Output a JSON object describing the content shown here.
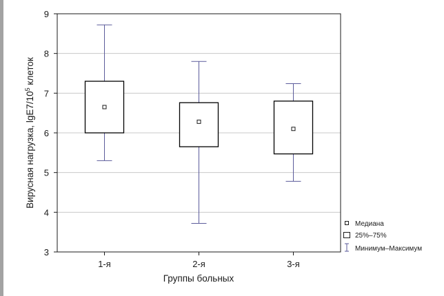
{
  "chart_data": {
    "type": "box",
    "categories": [
      "1-я",
      "2-я",
      "3-я"
    ],
    "boxes": [
      {
        "category": "1-я",
        "min": 5.3,
        "q1": 6.0,
        "median": 6.65,
        "q3": 7.3,
        "max": 8.72
      },
      {
        "category": "2-я",
        "min": 3.72,
        "q1": 5.65,
        "median": 6.28,
        "q3": 6.76,
        "max": 7.8
      },
      {
        "category": "3-я",
        "min": 4.78,
        "q1": 5.47,
        "median": 6.1,
        "q3": 6.8,
        "max": 7.24
      }
    ],
    "title": "",
    "xlabel": "Группы больных",
    "ylabel": "Вирусная нагрузка, lgE7/10⁵ клеток",
    "ylim": [
      3,
      9
    ],
    "yticks": [
      3,
      4,
      5,
      6,
      7,
      8,
      9
    ],
    "grid": true,
    "legend": {
      "placement": "bottom-right",
      "entries": [
        {
          "symbol": "median-marker",
          "label": "Медиана"
        },
        {
          "symbol": "box",
          "label": "25%–75%"
        },
        {
          "symbol": "whisker",
          "label": "Минимум–Максимум"
        }
      ]
    },
    "colors": {
      "whisker": "#5a5a9a",
      "box": "#000000",
      "grid": "#c8c8c8"
    }
  }
}
